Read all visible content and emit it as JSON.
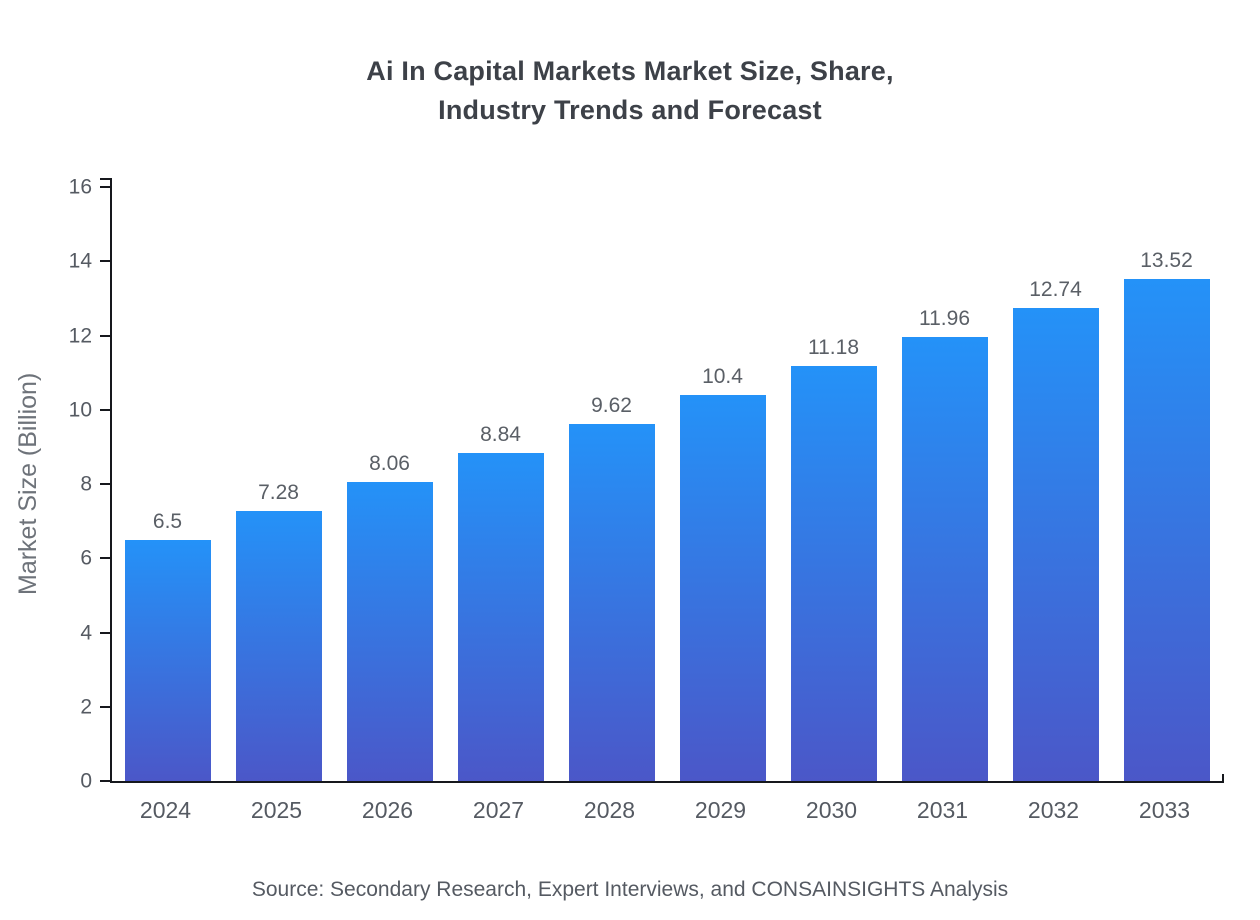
{
  "title": "Ai In Capital Markets Market Size, Share,\nIndustry Trends and Forecast",
  "source": "Source: Secondary Research, Expert Interviews, and CONSAINSIGHTS Analysis",
  "colors": {
    "bar_gradient_top": "#2492f8",
    "bar_gradient_bottom": "#4b57c8",
    "axis": "#16181d",
    "title_text": "#3d4148",
    "tick_text": "#555a62"
  },
  "chart_data": {
    "type": "bar",
    "title": "Ai In Capital Markets Market Size, Share, Industry Trends and Forecast",
    "categories": [
      "2024",
      "2025",
      "2026",
      "2027",
      "2028",
      "2029",
      "2030",
      "2031",
      "2032",
      "2033"
    ],
    "values": [
      6.5,
      7.28,
      8.06,
      8.84,
      9.62,
      10.4,
      11.18,
      11.96,
      12.74,
      13.52
    ],
    "value_labels": [
      "6.5",
      "7.28",
      "8.06",
      "8.84",
      "9.62",
      "10.4",
      "11.18",
      "11.96",
      "12.74",
      "13.52"
    ],
    "xlabel": "",
    "ylabel": "Market Size (Billion)",
    "ylim": [
      0,
      16
    ],
    "yticks": [
      0,
      2,
      4,
      6,
      8,
      10,
      12,
      14,
      16
    ],
    "grid": false,
    "legend": "none",
    "annotation": "Source: Secondary Research, Expert Interviews, and CONSAINSIGHTS Analysis"
  }
}
